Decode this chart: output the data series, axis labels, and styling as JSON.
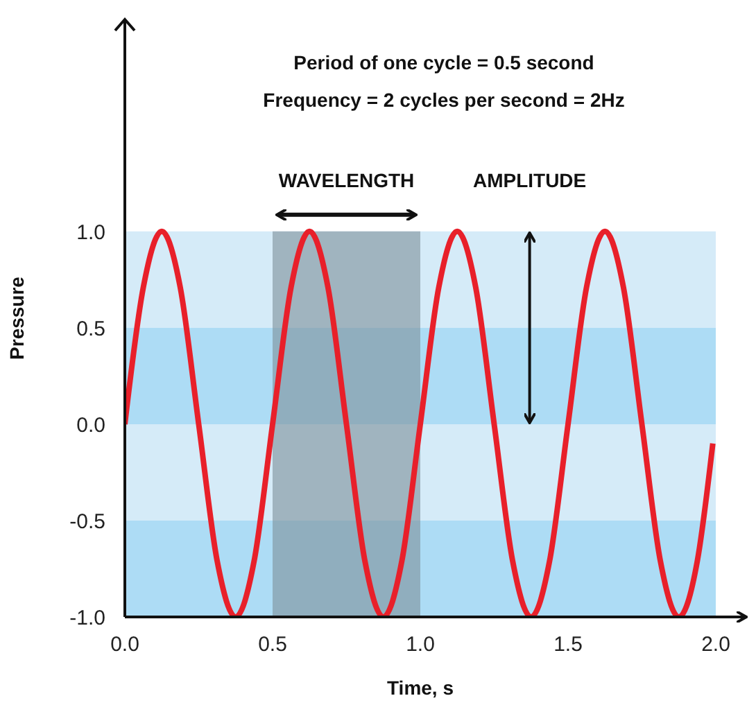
{
  "chart_data": {
    "type": "line",
    "title": "Period of one cycle = 0.5 second",
    "subtitle": "Frequency = 2 cycles per second = 2Hz",
    "xlabel": "Time, s",
    "ylabel": "Pressure",
    "x": [
      0,
      0.0625,
      0.125,
      0.1875,
      0.25,
      0.3125,
      0.375,
      0.4375,
      0.5,
      0.5625,
      0.625,
      0.6875,
      0.75,
      0.8125,
      0.875,
      0.9375,
      1.0,
      1.0625,
      1.125,
      1.1875,
      1.25,
      1.3125,
      1.375,
      1.4375,
      1.5,
      1.5625,
      1.625,
      1.6875,
      1.75,
      1.8125,
      1.875,
      1.9375,
      1.99
    ],
    "series": [
      {
        "color": "#e8202a",
        "values": [
          0,
          0.71,
          1,
          0.71,
          0,
          -0.71,
          -1,
          -0.71,
          0,
          0.71,
          1,
          0.71,
          0,
          -0.71,
          -1,
          -0.71,
          0,
          0.71,
          1,
          0.71,
          0,
          -0.71,
          -1,
          -0.71,
          0,
          0.71,
          1,
          0.71,
          0,
          -0.71,
          -1,
          -0.71,
          -0.1
        ]
      }
    ],
    "xlim": [
      0,
      2.0
    ],
    "xticks": [
      {
        "value": 0,
        "label": "0.0"
      },
      0.5,
      {
        "value": 1,
        "label": "1.0"
      },
      1.5,
      {
        "value": 2,
        "label": "2.0"
      }
    ],
    "ylim": [
      -1,
      2.1
    ],
    "yticks": [
      {
        "value": -1,
        "label": "-1.0"
      },
      -0.5,
      {
        "value": 0,
        "label": "0.0"
      },
      0.5,
      {
        "value": 1,
        "label": "1.0"
      }
    ],
    "bands": [
      {
        "axis": "y",
        "from": -1,
        "to": -0.5,
        "color": "#addcf5"
      },
      {
        "axis": "y",
        "from": -0.5,
        "to": 0,
        "color": "#d5ebf8"
      },
      {
        "axis": "y",
        "from": 0,
        "to": 0.5,
        "color": "#addcf5"
      },
      {
        "axis": "y",
        "from": 0.5,
        "to": 1,
        "color": "#d5ebf8"
      },
      {
        "axis": "x",
        "from": 0.5,
        "to": 1.0,
        "color": "#7d8f99"
      }
    ],
    "annotations": [
      {
        "text": "WAVELENGTH",
        "x": 0.75,
        "y": 1.0
      },
      {
        "text": "AMPLITUDE",
        "x": 1.37,
        "y": 1.0
      }
    ],
    "grid": false,
    "legend": false,
    "marker": "none",
    "line_style": "solid"
  }
}
